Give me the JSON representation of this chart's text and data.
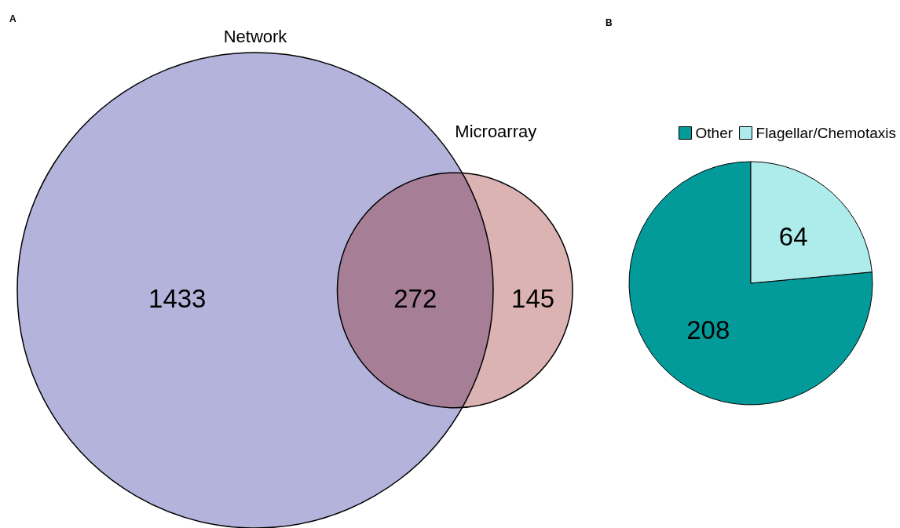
{
  "chart_data": [
    {
      "type": "other",
      "title": "A",
      "categories": [
        null,
        null,
        null
      ],
      "values": [
        1433,
        272,
        145
      ],
      "colors": [
        "#b3b3dc",
        "#a67f97",
        "#dbb3b3"
      ],
      "data_labels": true,
      "annotations": [
        "Network",
        "Microarray"
      ]
    },
    {
      "type": "pie",
      "title": "B",
      "categories": [
        "Other",
        "Flagellar/Chemotaxis"
      ],
      "values": [
        208,
        64
      ],
      "colors": [
        "#039a9a",
        "#aeeceb"
      ],
      "legend": "top",
      "data_labels": true
    }
  ]
}
